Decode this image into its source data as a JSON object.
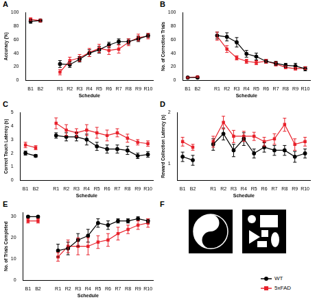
{
  "chart_data": [
    {
      "panel": "A",
      "type": "line",
      "x_label": "Schedule",
      "y_label": "Accuracy (%)",
      "categories": [
        "B1",
        "B2",
        null,
        "R1",
        "R2",
        "R3",
        "R4",
        "R5",
        "R6",
        "R7",
        "R8",
        "R9",
        "R10"
      ],
      "series": [
        {
          "name": "WT",
          "color": "#000000",
          "marker": "circle",
          "values": [
            87,
            88,
            null,
            24,
            23,
            31,
            40,
            45,
            52,
            57,
            57,
            61,
            66
          ],
          "errors": [
            3,
            2,
            null,
            5,
            4,
            4,
            5,
            5,
            4,
            4,
            4,
            4,
            3
          ]
        },
        {
          "name": "5xFAD",
          "color": "#e8212b",
          "marker": "square",
          "values": [
            90,
            88,
            null,
            12,
            29,
            33,
            41,
            47,
            44,
            46,
            56,
            63,
            65
          ],
          "errors": [
            2,
            2,
            null,
            4,
            5,
            5,
            6,
            6,
            6,
            6,
            5,
            5,
            4
          ]
        }
      ],
      "ylim": [
        0,
        100
      ],
      "yticks": [
        0,
        20,
        40,
        60,
        80,
        100
      ],
      "grid": false
    },
    {
      "panel": "B",
      "type": "line",
      "x_label": "Schedule",
      "y_label": "No. of Correction Trials",
      "categories": [
        "B1",
        "B2",
        null,
        "R1",
        "R2",
        "R3",
        "R4",
        "R5",
        "R6",
        "R7",
        "R8",
        "R9",
        "R10"
      ],
      "series": [
        {
          "name": "WT",
          "color": "#000000",
          "marker": "circle",
          "values": [
            4,
            4,
            null,
            66,
            64,
            56,
            39,
            35,
            28,
            25,
            22,
            21,
            17
          ],
          "errors": [
            1,
            1,
            null,
            5,
            6,
            7,
            5,
            5,
            3,
            3,
            3,
            4,
            3
          ]
        },
        {
          "name": "5xFAD",
          "color": "#e8212b",
          "marker": "square",
          "values": [
            4,
            5,
            null,
            65,
            46,
            33,
            28,
            26,
            28,
            24,
            19,
            17,
            18
          ],
          "errors": [
            1,
            1,
            null,
            6,
            5,
            3,
            3,
            3,
            3,
            3,
            2,
            2,
            2
          ]
        }
      ],
      "ylim": [
        0,
        100
      ],
      "yticks": [
        0,
        20,
        40,
        60,
        80,
        100
      ],
      "grid": false
    },
    {
      "panel": "C",
      "type": "line",
      "x_label": "Schedule",
      "y_label": "Correct Touch Latency (s)",
      "categories": [
        "B1",
        "B2",
        null,
        "R1",
        "R2",
        "R3",
        "R4",
        "R5",
        "R6",
        "R7",
        "R8",
        "R9",
        "R10"
      ],
      "series": [
        {
          "name": "WT",
          "color": "#000000",
          "marker": "circle",
          "values": [
            2.0,
            1.8,
            null,
            3.3,
            3.2,
            3.2,
            3.0,
            2.5,
            2.3,
            2.3,
            2.2,
            1.8,
            1.9
          ],
          "errors": [
            0.15,
            0.1,
            null,
            0.2,
            0.3,
            0.3,
            0.4,
            0.3,
            0.3,
            0.3,
            0.3,
            0.2,
            0.2
          ]
        },
        {
          "name": "5xFAD",
          "color": "#e8212b",
          "marker": "square",
          "values": [
            2.6,
            2.4,
            null,
            4.2,
            3.7,
            3.5,
            3.7,
            3.5,
            3.3,
            3.5,
            3.1,
            2.8,
            2.7
          ],
          "errors": [
            0.2,
            0.15,
            null,
            0.4,
            0.4,
            0.3,
            0.4,
            0.4,
            0.4,
            0.3,
            0.3,
            0.2,
            0.2
          ]
        }
      ],
      "ylim": [
        0,
        5
      ],
      "yticks": [
        0,
        1,
        2,
        3,
        4,
        5
      ],
      "grid": false
    },
    {
      "panel": "D",
      "type": "line",
      "x_label": "Schedule",
      "y_label": "Reward Collection Latency (s)",
      "categories": [
        "B1",
        "B2",
        null,
        "R1",
        "R2",
        "R3",
        "R4",
        "R5",
        "R6",
        "R7",
        "R8",
        "R9",
        "R10"
      ],
      "series": [
        {
          "name": "WT",
          "color": "#000000",
          "marker": "circle",
          "values": [
            1.1,
            1.05,
            null,
            1.3,
            1.5,
            1.2,
            1.4,
            1.15,
            1.25,
            1.2,
            1.2,
            1.1,
            1.15
          ],
          "errors": [
            0.07,
            0.07,
            null,
            0.1,
            0.12,
            0.1,
            0.12,
            0.07,
            0.08,
            0.08,
            0.08,
            0.08,
            0.07
          ]
        },
        {
          "name": "5xFAD",
          "color": "#e8212b",
          "marker": "square",
          "values": [
            1.35,
            1.25,
            null,
            1.35,
            1.75,
            1.45,
            1.45,
            1.45,
            1.35,
            1.4,
            1.7,
            1.3,
            1.35
          ],
          "errors": [
            0.08,
            0.05,
            null,
            0.1,
            0.15,
            0.12,
            0.1,
            0.08,
            0.08,
            0.1,
            0.15,
            0.1,
            0.08
          ]
        }
      ],
      "ylim": [
        0.8,
        2
      ],
      "yticks": [
        1,
        2
      ],
      "log": "y",
      "grid": false
    },
    {
      "panel": "E",
      "type": "line",
      "x_label": "Schedule",
      "y_label": "No. of Trials Completed",
      "categories": [
        "B1",
        "B2",
        null,
        "R1",
        "R2",
        "R3",
        "R4",
        "R5",
        "R6",
        "R7",
        "R8",
        "R9",
        "R10"
      ],
      "series": [
        {
          "name": "WT",
          "color": "#000000",
          "marker": "circle",
          "values": [
            30,
            30,
            null,
            14,
            15,
            19,
            21,
            27,
            26,
            28,
            28,
            29,
            28
          ],
          "errors": [
            0.3,
            0.3,
            null,
            3,
            3,
            3,
            3,
            2,
            2,
            1,
            1,
            1,
            1
          ]
        },
        {
          "name": "5xFAD",
          "color": "#e8212b",
          "marker": "square",
          "values": [
            28,
            28,
            null,
            11,
            16,
            16,
            16,
            18,
            19,
            22,
            24,
            26,
            27
          ],
          "errors": [
            1,
            1,
            null,
            2,
            3,
            4,
            4,
            3,
            3,
            3,
            2,
            2,
            2
          ]
        }
      ],
      "ylim": [
        0,
        32
      ],
      "yticks": [
        0,
        10,
        20,
        30
      ],
      "grid": false
    }
  ],
  "panel_f": {
    "label": "F"
  },
  "legend": "lower right"
}
